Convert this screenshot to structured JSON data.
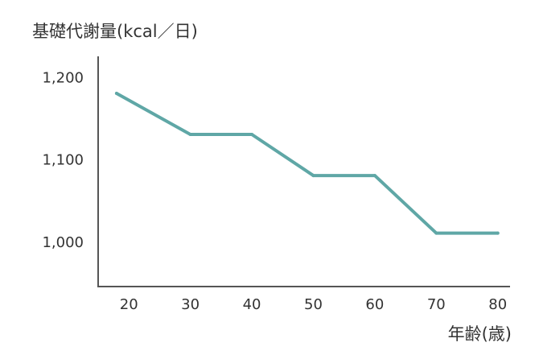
{
  "chart_data": {
    "type": "line",
    "ylabel": "基礎代謝量(kcal／日)",
    "xlabel": "年齢(歳)",
    "x": [
      18,
      30,
      40,
      50,
      60,
      70,
      80
    ],
    "x_ticks": [
      20,
      30,
      40,
      50,
      60,
      70,
      80
    ],
    "x_tick_labels": [
      "20",
      "30",
      "40",
      "50",
      "60",
      "70",
      "80"
    ],
    "xlim": [
      15,
      82
    ],
    "y_ticks": [
      1000,
      1100,
      1200
    ],
    "y_tick_labels": [
      "1,000",
      "1,100",
      "1,200"
    ],
    "ylim": [
      945,
      1225
    ],
    "series": [
      {
        "values": [
          1180,
          1130,
          1130,
          1080,
          1080,
          1010,
          1010
        ],
        "color": "#5fa7a6"
      }
    ],
    "grid": false,
    "axis_color": "#555555"
  }
}
